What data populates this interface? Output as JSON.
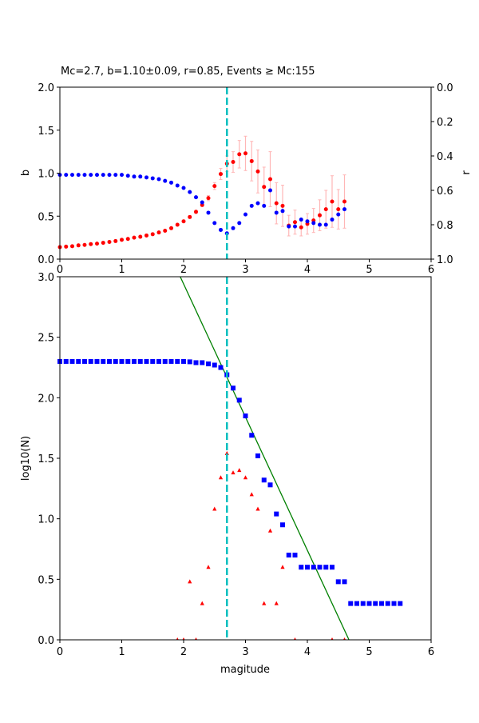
{
  "chart_data": [
    {
      "type": "scatter",
      "title": "Mc=2.7, b=1.10±0.09, r=0.85, Events ≥ Mc:155",
      "xlabel": "",
      "ylabel": "b",
      "ylabel_right": "r",
      "xlim": [
        0,
        6
      ],
      "ylim": [
        0,
        2.0
      ],
      "ylim_right": [
        1.0,
        0.0
      ],
      "xticks": [
        "0",
        "1",
        "2",
        "3",
        "4",
        "5",
        "6"
      ],
      "yticks": [
        "0.0",
        "0.5",
        "1.0",
        "1.5",
        "2.0"
      ],
      "yticks_right": [
        "0.0",
        "0.2",
        "0.4",
        "0.6",
        "0.8",
        "1.0"
      ],
      "mc": 2.7,
      "colors": {
        "b": "#ff0000",
        "r": "#0000ff",
        "err": "#ffb6b6",
        "mc": "#00bfbf"
      },
      "x": [
        0,
        0.1,
        0.2,
        0.3,
        0.4,
        0.5,
        0.6,
        0.7,
        0.8,
        0.9,
        1.0,
        1.1,
        1.2,
        1.3,
        1.4,
        1.5,
        1.6,
        1.7,
        1.8,
        1.9,
        2.0,
        2.1,
        2.2,
        2.3,
        2.4,
        2.5,
        2.6,
        2.7,
        2.8,
        2.9,
        3.0,
        3.1,
        3.2,
        3.3,
        3.4,
        3.5,
        3.6,
        3.7,
        3.8,
        3.9,
        4.0,
        4.1,
        4.2,
        4.3,
        4.4,
        4.5,
        4.6
      ],
      "series": [
        {
          "name": "b",
          "axis": "left",
          "values": [
            0.14,
            0.145,
            0.15,
            0.16,
            0.165,
            0.175,
            0.18,
            0.19,
            0.2,
            0.21,
            0.225,
            0.235,
            0.25,
            0.26,
            0.275,
            0.29,
            0.31,
            0.33,
            0.36,
            0.4,
            0.44,
            0.49,
            0.55,
            0.63,
            0.71,
            0.85,
            0.99,
            1.11,
            1.13,
            1.22,
            1.23,
            1.14,
            1.02,
            0.84,
            0.93,
            0.65,
            0.62,
            0.39,
            0.43,
            0.37,
            0.41,
            0.45,
            0.51,
            0.58,
            0.67,
            0.58,
            0.67
          ],
          "errors": [
            0,
            0,
            0,
            0,
            0,
            0,
            0,
            0,
            0,
            0,
            0,
            0,
            0,
            0,
            0,
            0,
            0,
            0,
            0,
            0.01,
            0.01,
            0.015,
            0.02,
            0.02,
            0.03,
            0.04,
            0.065,
            0.09,
            0.12,
            0.16,
            0.2,
            0.23,
            0.25,
            0.23,
            0.32,
            0.24,
            0.24,
            0.12,
            0.14,
            0.1,
            0.12,
            0.14,
            0.18,
            0.22,
            0.3,
            0.23,
            0.31
          ]
        },
        {
          "name": "r",
          "axis": "right",
          "values": [
            0.51,
            0.51,
            0.51,
            0.51,
            0.51,
            0.51,
            0.51,
            0.51,
            0.51,
            0.51,
            0.51,
            0.515,
            0.52,
            0.52,
            0.525,
            0.53,
            0.535,
            0.545,
            0.555,
            0.572,
            0.586,
            0.61,
            0.64,
            0.67,
            0.73,
            0.79,
            0.83,
            0.85,
            0.82,
            0.79,
            0.74,
            0.69,
            0.675,
            0.69,
            0.6,
            0.73,
            0.72,
            0.81,
            0.81,
            0.77,
            0.78,
            0.79,
            0.8,
            0.8,
            0.77,
            0.74,
            0.71
          ]
        }
      ]
    },
    {
      "type": "scatter",
      "title": "",
      "xlabel": "magitude",
      "ylabel": "log10(N)",
      "xlim": [
        0,
        6
      ],
      "ylim": [
        0,
        3.0
      ],
      "xticks": [
        "0",
        "1",
        "2",
        "3",
        "4",
        "5",
        "6"
      ],
      "yticks": [
        "0.0",
        "0.5",
        "1.0",
        "1.5",
        "2.0",
        "2.5",
        "3.0"
      ],
      "mc": 2.7,
      "colors": {
        "cumulative": "#0000ff",
        "noncumulative": "#ff0000",
        "fit": "#008000",
        "mc": "#00bfbf"
      },
      "fit_line": {
        "a": 5.14,
        "b": 1.1
      },
      "series": [
        {
          "name": "cumulative",
          "marker": "square",
          "x": [
            0,
            0.1,
            0.2,
            0.3,
            0.4,
            0.5,
            0.6,
            0.7,
            0.8,
            0.9,
            1.0,
            1.1,
            1.2,
            1.3,
            1.4,
            1.5,
            1.6,
            1.7,
            1.8,
            1.9,
            2.0,
            2.1,
            2.2,
            2.3,
            2.4,
            2.5,
            2.6,
            2.7,
            2.8,
            2.9,
            3.0,
            3.1,
            3.2,
            3.3,
            3.4,
            3.5,
            3.6,
            3.7,
            3.8,
            3.9,
            4.0,
            4.1,
            4.2,
            4.3,
            4.4,
            4.5,
            4.6,
            4.7,
            4.8,
            4.9,
            5.0,
            5.1,
            5.2,
            5.3,
            5.4,
            5.5
          ],
          "values": [
            2.3,
            2.3,
            2.3,
            2.3,
            2.3,
            2.3,
            2.3,
            2.3,
            2.3,
            2.3,
            2.3,
            2.3,
            2.3,
            2.3,
            2.3,
            2.3,
            2.3,
            2.3,
            2.3,
            2.3,
            2.3,
            2.297,
            2.29,
            2.29,
            2.28,
            2.27,
            2.25,
            2.19,
            2.08,
            1.98,
            1.85,
            1.69,
            1.52,
            1.32,
            1.28,
            1.04,
            0.95,
            0.7,
            0.7,
            0.6,
            0.6,
            0.6,
            0.6,
            0.6,
            0.6,
            0.48,
            0.48,
            0.3,
            0.3,
            0.3,
            0.3,
            0.3,
            0.3,
            0.3,
            0.3,
            0.3
          ]
        },
        {
          "name": "noncumulative",
          "marker": "triangle",
          "x": [
            1.9,
            2.0,
            2.1,
            2.2,
            2.3,
            2.4,
            2.5,
            2.6,
            2.7,
            2.8,
            2.9,
            3.0,
            3.1,
            3.2,
            3.3,
            3.4,
            3.5,
            3.6,
            3.8,
            4.4,
            4.6
          ],
          "values": [
            0,
            0,
            0.48,
            0,
            0.3,
            0.6,
            1.08,
            1.34,
            1.54,
            1.38,
            1.4,
            1.34,
            1.2,
            1.08,
            0.3,
            0.9,
            0.3,
            0.6,
            0,
            0,
            0
          ]
        }
      ]
    }
  ]
}
